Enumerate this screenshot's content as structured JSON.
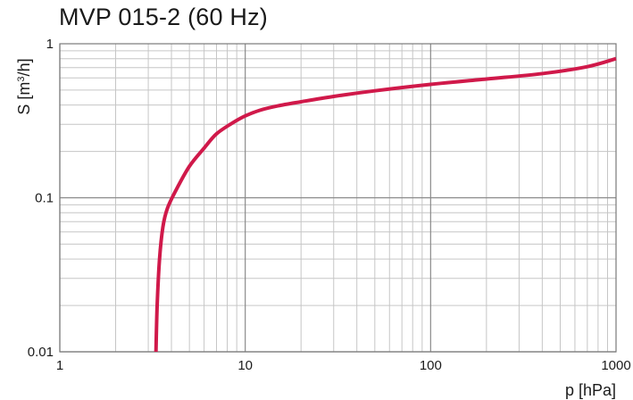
{
  "chart_data": {
    "type": "line",
    "title": "MVP 015-2 (60 Hz)",
    "xlabel": "p  [hPa]",
    "ylabel_prefix": "S  [m",
    "ylabel_sup": "3",
    "ylabel_suffix": "/h]",
    "xscale": "log",
    "yscale": "log",
    "xlim": [
      1,
      1000
    ],
    "ylim": [
      0.01,
      1
    ],
    "x_ticks": [
      {
        "value": 1,
        "label": "1"
      },
      {
        "value": 10,
        "label": "10"
      },
      {
        "value": 100,
        "label": "100"
      },
      {
        "value": 1000,
        "label": "1000"
      }
    ],
    "y_ticks": [
      {
        "value": 0.01,
        "label": "0.01"
      },
      {
        "value": 0.1,
        "label": "0.1"
      },
      {
        "value": 1,
        "label": "1"
      }
    ],
    "grid": true,
    "series": [
      {
        "color": "#d0194a",
        "x": [
          3.3,
          3.35,
          3.45,
          3.6,
          3.8,
          4.2,
          5,
          6,
          7,
          8.5,
          10,
          12,
          15,
          20,
          30,
          50,
          100,
          200,
          400,
          700,
          1000
        ],
        "y": [
          0.01,
          0.02,
          0.04,
          0.065,
          0.085,
          0.11,
          0.16,
          0.21,
          0.26,
          0.305,
          0.34,
          0.37,
          0.395,
          0.42,
          0.455,
          0.495,
          0.545,
          0.59,
          0.64,
          0.71,
          0.8
        ]
      }
    ]
  }
}
